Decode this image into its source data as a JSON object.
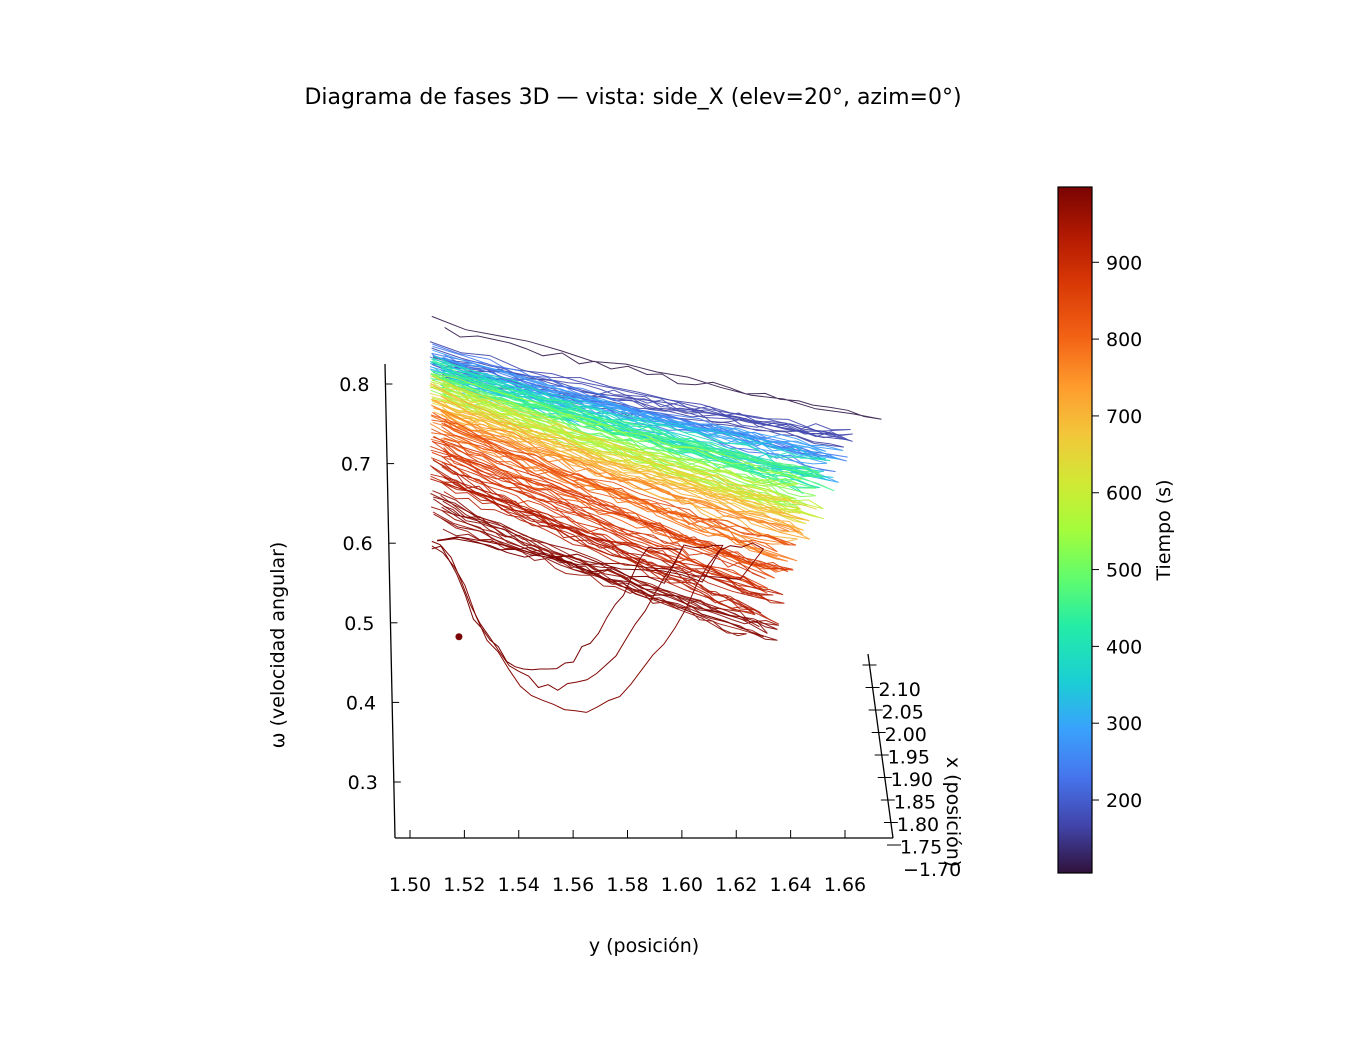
{
  "chart_data": {
    "type": "line",
    "projection": "3d",
    "title": "Diagrama de fases 3D — vista: side_X (elev=20°, azim=0°)",
    "view": {
      "elev": 20,
      "azim": 0
    },
    "xlabel": "y (posición)",
    "ylabel": "ω (velocidad angular)",
    "zlabel": "x (posición)",
    "y_ticks": [
      "1.50",
      "1.52",
      "1.54",
      "1.56",
      "1.58",
      "1.60",
      "1.62",
      "1.64",
      "1.66"
    ],
    "omega_ticks": [
      "0.3",
      "0.4",
      "0.5",
      "0.6",
      "0.7",
      "0.8"
    ],
    "x_ticks": [
      "2.10",
      "2.05",
      "2.00",
      "1.95",
      "1.90",
      "1.85",
      "1.80",
      "1.75",
      "1.70"
    ],
    "y_range": [
      1.495,
      1.672
    ],
    "omega_range": [
      0.23,
      0.84
    ],
    "colorbar": {
      "label": "Tiempo (s)",
      "colormap": "turbo",
      "range": [
        105,
        998
      ],
      "ticks": [
        "200",
        "300",
        "400",
        "500",
        "600",
        "700",
        "800",
        "900"
      ]
    },
    "marker": {
      "y": 1.518,
      "omega": 0.485,
      "color": "#7a0403"
    },
    "grid": false,
    "series_description": "trajectory colored by time; one sweep per cycle from the left wall (y≈1.51) to the right edge (y≈1.63–1.66), drifting from ω≈0.83 at early times to ω≈0.55–0.45 at late times",
    "bands": [
      {
        "t": 110,
        "omega_left": 0.866,
        "omega_right": 0.768,
        "y_right": 1.672,
        "count": 1
      },
      {
        "t": 170,
        "omega_left": 0.828,
        "omega_right": 0.72,
        "y_right": 1.658,
        "count": 6
      },
      {
        "t": 230,
        "omega_left": 0.825,
        "omega_right": 0.715,
        "y_right": 1.656,
        "count": 6
      },
      {
        "t": 290,
        "omega_left": 0.82,
        "omega_right": 0.705,
        "y_right": 1.654,
        "count": 6
      },
      {
        "t": 350,
        "omega_left": 0.815,
        "omega_right": 0.695,
        "y_right": 1.652,
        "count": 6
      },
      {
        "t": 410,
        "omega_left": 0.81,
        "omega_right": 0.685,
        "y_right": 1.65,
        "count": 6
      },
      {
        "t": 470,
        "omega_left": 0.805,
        "omega_right": 0.675,
        "y_right": 1.65,
        "count": 6
      },
      {
        "t": 530,
        "omega_left": 0.8,
        "omega_right": 0.665,
        "y_right": 1.648,
        "count": 6
      },
      {
        "t": 590,
        "omega_left": 0.792,
        "omega_right": 0.65,
        "y_right": 1.647,
        "count": 6
      },
      {
        "t": 650,
        "omega_left": 0.785,
        "omega_right": 0.64,
        "y_right": 1.645,
        "count": 6
      },
      {
        "t": 710,
        "omega_left": 0.77,
        "omega_right": 0.62,
        "y_right": 1.642,
        "count": 6
      },
      {
        "t": 770,
        "omega_left": 0.755,
        "omega_right": 0.6,
        "y_right": 1.64,
        "count": 6
      },
      {
        "t": 830,
        "omega_left": 0.74,
        "omega_right": 0.58,
        "y_right": 1.637,
        "count": 7
      },
      {
        "t": 880,
        "omega_left": 0.71,
        "omega_right": 0.555,
        "y_right": 1.635,
        "count": 7
      },
      {
        "t": 930,
        "omega_left": 0.68,
        "omega_right": 0.52,
        "y_right": 1.632,
        "count": 7
      },
      {
        "t": 975,
        "omega_left": 0.64,
        "omega_right": 0.48,
        "y_right": 1.63,
        "count": 7
      }
    ],
    "tail_loops": [
      {
        "t": 985,
        "omega_bottom": 0.39,
        "y_right": 1.63
      },
      {
        "t": 992,
        "omega_bottom": 0.42,
        "y_right": 1.615
      },
      {
        "t": 998,
        "omega_bottom": 0.44,
        "y_right": 1.6
      }
    ]
  }
}
